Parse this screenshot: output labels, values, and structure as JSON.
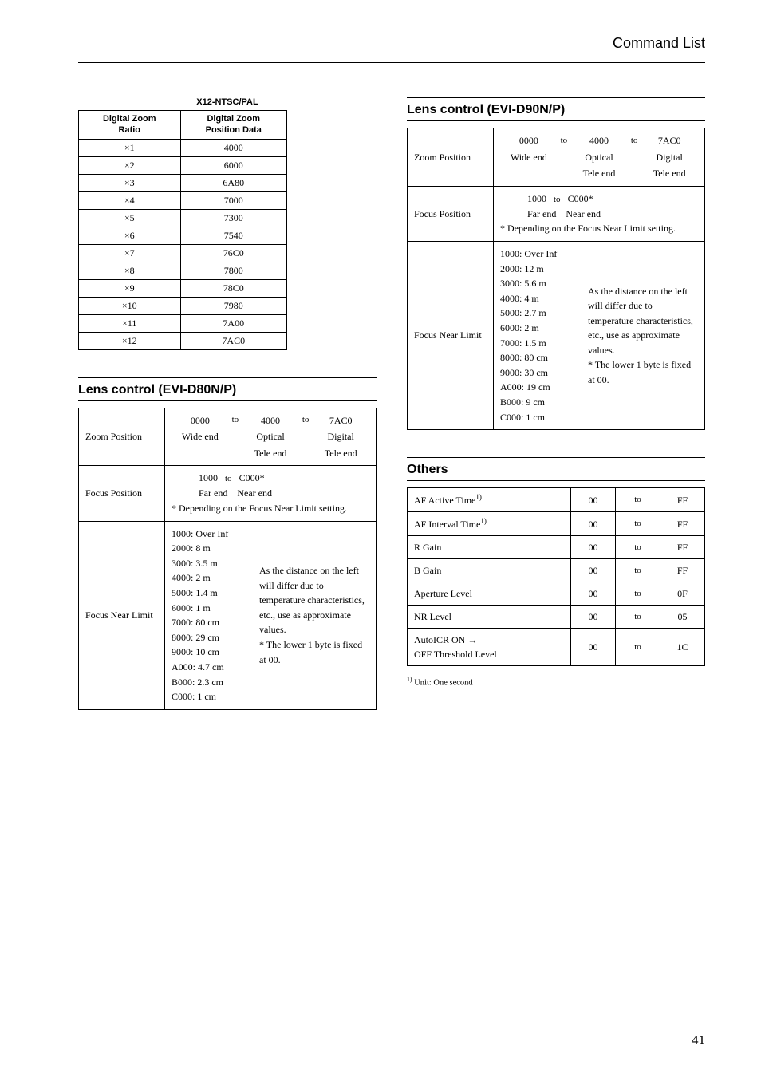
{
  "header": {
    "title": "Command List"
  },
  "page_number": "41",
  "zoom_table": {
    "caption": "X12-NTSC/PAL",
    "headers": [
      "Digital Zoom\nRatio",
      "Digital Zoom\nPosition Data"
    ],
    "rows": [
      [
        "×1",
        "4000"
      ],
      [
        "×2",
        "6000"
      ],
      [
        "×3",
        "6A80"
      ],
      [
        "×4",
        "7000"
      ],
      [
        "×5",
        "7300"
      ],
      [
        "×6",
        "7540"
      ],
      [
        "×7",
        "76C0"
      ],
      [
        "×8",
        "7800"
      ],
      [
        "×9",
        "78C0"
      ],
      [
        "×10",
        "7980"
      ],
      [
        "×11",
        "7A00"
      ],
      [
        "×12",
        "7AC0"
      ]
    ]
  },
  "lens_d80": {
    "heading": "Lens control (EVI-D80N/P)",
    "zoom_position": {
      "label": "Zoom Position",
      "r1": {
        "a": "0000",
        "to1": "to",
        "b": "4000",
        "to2": "to",
        "c": "7AC0"
      },
      "r2": {
        "a": "Wide end",
        "b": "Optical",
        "c": "Digital"
      },
      "r3": {
        "b": "Tele end",
        "c": "Tele end"
      }
    },
    "focus_position": {
      "label": "Focus Position",
      "line1_a": "1000",
      "line1_to": "to",
      "line1_b": "C000*",
      "line2": "Far end    Near end",
      "line3": "* Depending on the Focus Near Limit setting."
    },
    "focus_near": {
      "label": "Focus Near Limit",
      "left_lines": [
        "1000: Over Inf",
        "2000: 8 m",
        "3000: 3.5 m",
        "4000: 2 m",
        "5000: 1.4 m",
        "6000: 1 m",
        "7000: 80 cm",
        "8000: 29 cm",
        "9000: 10 cm",
        "A000: 4.7 cm",
        "B000: 2.3 cm",
        "C000: 1 cm"
      ],
      "right_text": "As the distance on the left will differ due to temperature characteristics, etc., use as approximate values.\n* The lower 1 byte is fixed at 00."
    }
  },
  "lens_d90": {
    "heading": "Lens control (EVI-D90N/P)",
    "zoom_position": {
      "label": "Zoom Position",
      "r1": {
        "a": "0000",
        "to1": "to",
        "b": "4000",
        "to2": "to",
        "c": "7AC0"
      },
      "r2": {
        "a": "Wide end",
        "b": "Optical",
        "c": "Digital"
      },
      "r3": {
        "b": "Tele end",
        "c": "Tele end"
      }
    },
    "focus_position": {
      "label": "Focus Position",
      "line1_a": "1000",
      "line1_to": "to",
      "line1_b": "C000*",
      "line2": "Far end    Near end",
      "line3": "* Depending on the Focus Near Limit setting."
    },
    "focus_near": {
      "label": "Focus Near Limit",
      "left_lines": [
        "1000: Over Inf",
        "2000: 12 m",
        "3000: 5.6 m",
        "4000: 4 m",
        "5000: 2.7 m",
        "6000: 2 m",
        "7000: 1.5 m",
        "8000: 80 cm",
        "9000: 30 cm",
        "A000: 19 cm",
        "B000: 9 cm",
        "C000: 1 cm"
      ],
      "right_text": "As the distance on the left will differ due to temperature characteristics, etc., use as approximate values.\n* The lower 1 byte is fixed at 00."
    }
  },
  "others": {
    "heading": "Others",
    "rows": [
      {
        "label_html": "AF Active Time<sup>1)</sup>",
        "a": "00",
        "to": "to",
        "b": "FF"
      },
      {
        "label_html": "AF Interval Time<sup>1)</sup>",
        "a": "00",
        "to": "to",
        "b": "FF"
      },
      {
        "label_html": "R Gain",
        "a": "00",
        "to": "to",
        "b": "FF"
      },
      {
        "label_html": "B Gain",
        "a": "00",
        "to": "to",
        "b": "FF"
      },
      {
        "label_html": "Aperture Level",
        "a": "00",
        "to": "to",
        "b": "0F"
      },
      {
        "label_html": "NR Level",
        "a": "00",
        "to": "to",
        "b": "05"
      },
      {
        "label_html": "AutoICR ON →<br>OFF Threshold Level",
        "a": "00",
        "to": "to",
        "b": "1C"
      }
    ],
    "footnote_html": "<sup>1)</sup> Unit: One second"
  }
}
